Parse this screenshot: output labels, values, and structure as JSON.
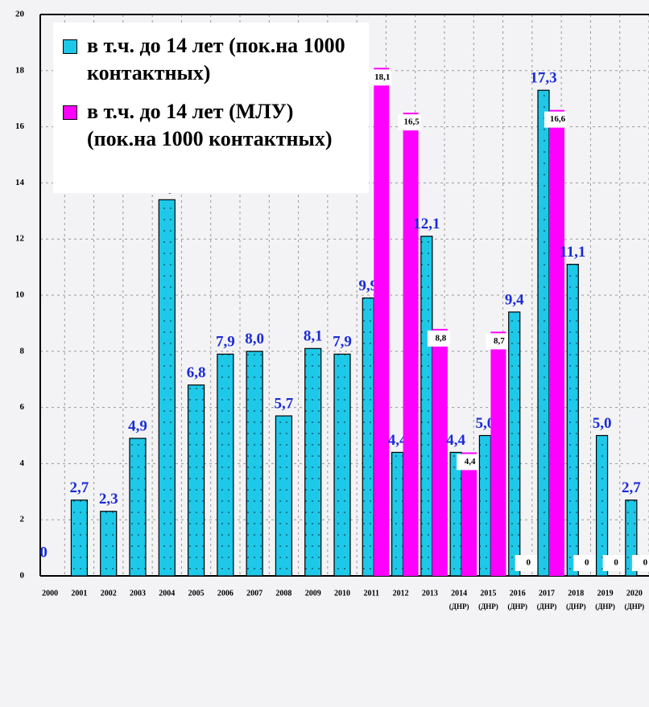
{
  "chart_data": {
    "type": "bar",
    "categories": [
      "2000",
      "2001",
      "2002",
      "2003",
      "2004",
      "2005",
      "2006",
      "2007",
      "2008",
      "2009",
      "2010",
      "2011",
      "2012",
      "2013",
      "2014",
      "2015",
      "2016",
      "2017",
      "2018",
      "2019",
      "2020"
    ],
    "category_notes": [
      null,
      null,
      null,
      null,
      null,
      null,
      null,
      null,
      null,
      null,
      null,
      null,
      null,
      null,
      "(ДНР)",
      "(ДНР)",
      "(ДНР)",
      "(ДНР)",
      "(ДНР)",
      "(ДНР)",
      "(ДНР)"
    ],
    "series": [
      {
        "name": "в т.ч. до 14 лет (пок.на 1000 контактных)",
        "color": "#1ec8e8",
        "values": [
          0,
          2.7,
          2.3,
          4.9,
          13.4,
          6.8,
          7.9,
          8.0,
          5.7,
          8.1,
          7.9,
          9.9,
          4.4,
          12.1,
          4.4,
          5.0,
          9.4,
          17.3,
          11.1,
          5.0,
          2.7
        ],
        "value_labels": [
          "0",
          "2,7",
          "2,3",
          "4,9",
          "13,4",
          "6,8",
          "7,9",
          "8,0",
          "5,7",
          "8,1",
          "7,9",
          "9,9",
          "4,4",
          "12,1",
          "4,4",
          "5,0",
          "9,4",
          "17,3",
          "11,1",
          "5,0",
          "2,7"
        ]
      },
      {
        "name": "в т.ч. до 14 лет (МЛУ) (пок.на 1000 контактных)",
        "color": "#ff00ff",
        "values": [
          null,
          null,
          null,
          null,
          null,
          null,
          null,
          null,
          null,
          null,
          null,
          18.1,
          16.5,
          8.8,
          4.4,
          8.7,
          0,
          16.6,
          0,
          0,
          0
        ],
        "value_labels": [
          null,
          null,
          null,
          null,
          null,
          null,
          null,
          null,
          null,
          null,
          null,
          "18,1",
          "16,5",
          "8,8",
          "4,4",
          "8,7",
          "0",
          "16,6",
          "0",
          "0",
          "0"
        ]
      }
    ],
    "ylim": [
      0,
      20
    ],
    "yticks": [
      0,
      2,
      4,
      6,
      8,
      10,
      12,
      14,
      16,
      18,
      20
    ],
    "grid": true,
    "legend": "upper left"
  }
}
